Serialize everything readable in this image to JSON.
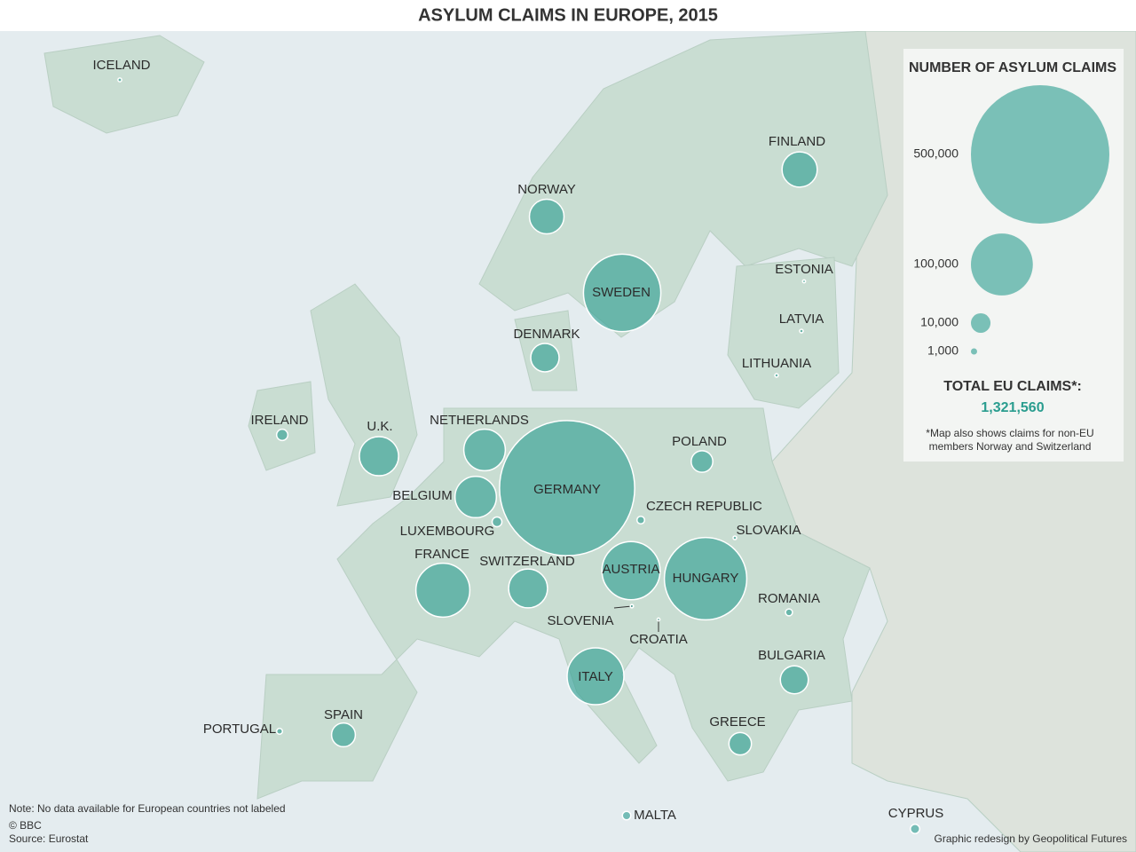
{
  "title": "ASYLUM CLAIMS IN EUROPE, 2015",
  "color": "#2a9d8f",
  "countries": [
    {
      "name": "ICELAND",
      "value": 370
    },
    {
      "name": "NORWAY",
      "value": 31145
    },
    {
      "name": "SWEDEN",
      "value": 156110
    },
    {
      "name": "FINLAND",
      "value": 32345
    },
    {
      "name": "ESTONIA",
      "value": 230
    },
    {
      "name": "LATVIA",
      "value": 330
    },
    {
      "name": "LITHUANIA",
      "value": 315
    },
    {
      "name": "DENMARK",
      "value": 21000
    },
    {
      "name": "IRELAND",
      "value": 3275
    },
    {
      "name": "U.K.",
      "value": 40000
    },
    {
      "name": "NETHERLANDS",
      "value": 44970
    },
    {
      "name": "BELGIUM",
      "value": 44660
    },
    {
      "name": "LUXEMBOURG",
      "value": 2505
    },
    {
      "name": "GERMANY",
      "value": 476510
    },
    {
      "name": "CZECH REPUBLIC",
      "value": 1515
    },
    {
      "name": "POLAND",
      "value": 12190
    },
    {
      "name": "SLOVAKIA",
      "value": 330
    },
    {
      "name": "AUSTRIA",
      "value": 88160
    },
    {
      "name": "HUNGARY",
      "value": 177135
    },
    {
      "name": "SWITZERLAND",
      "value": 39445
    },
    {
      "name": "FRANCE",
      "value": 75750
    },
    {
      "name": "SLOVENIA",
      "value": 275
    },
    {
      "name": "CROATIA",
      "value": 210
    },
    {
      "name": "ROMANIA",
      "value": 1260
    },
    {
      "name": "BULGARIA",
      "value": 20365
    },
    {
      "name": "ITALY",
      "value": 84085
    },
    {
      "name": "SPAIN",
      "value": 14780
    },
    {
      "name": "PORTUGAL",
      "value": 895
    },
    {
      "name": "GREECE",
      "value": 13205
    },
    {
      "name": "MALTA",
      "value": 1845
    },
    {
      "name": "CYPRUS",
      "value": 2265
    }
  ],
  "legend": {
    "title": "NUMBER OF ASYLUM CLAIMS",
    "sizes": [
      {
        "value": 500000,
        "label": "500,000"
      },
      {
        "value": 100000,
        "label": "100,000"
      },
      {
        "value": 10000,
        "label": "10,000"
      },
      {
        "value": 1000,
        "label": "1,000"
      }
    ],
    "total_label": "TOTAL EU CLAIMS*:",
    "total": "1,321,560",
    "footnote": [
      "*Map also shows claims for non-EU",
      "members Norway and Switzerland"
    ]
  },
  "notes": [
    "Note: No data available for European countries not labeled",
    "© BBC",
    "Source: Eurostat"
  ],
  "credit": "Graphic redesign by Geopolitical Futures"
}
